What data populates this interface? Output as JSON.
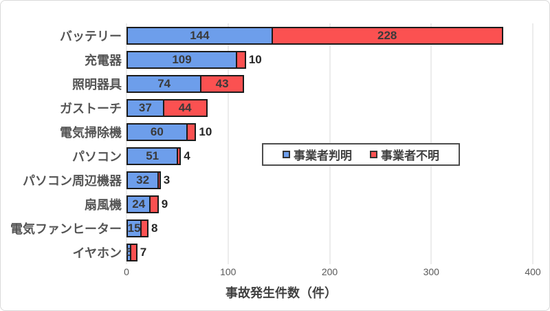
{
  "chart_data": {
    "type": "bar",
    "orientation": "horizontal",
    "stacked": true,
    "title": "",
    "xlabel": "事故発生件数（件）",
    "ylabel": "",
    "xlim": [
      0,
      400
    ],
    "x_ticks": [
      0,
      100,
      200,
      300,
      400
    ],
    "grid": true,
    "legend_position": "inside-middle-right",
    "categories": [
      "バッテリー",
      "充電器",
      "照明器具",
      "ガストーチ",
      "電気掃除機",
      "パソコン",
      "パソコン周辺機器",
      "扇風機",
      "電気ファンヒーター",
      "イヤホン"
    ],
    "series": [
      {
        "name": "事業者判明",
        "color": "#6d9eeb",
        "values": [
          144,
          109,
          74,
          37,
          60,
          51,
          32,
          24,
          15,
          5
        ]
      },
      {
        "name": "事業者不明",
        "color": "#fb5151",
        "values": [
          228,
          10,
          43,
          44,
          10,
          4,
          3,
          9,
          8,
          7
        ]
      }
    ]
  },
  "colors": {
    "bar_blue": "#6d9eeb",
    "bar_red": "#fb5151",
    "bar_border": "#1a1a1a",
    "gridline": "#d9d9d9",
    "chart_border": "#d9d9d9",
    "value_label_text": "#3a3a3a",
    "axis_text": "#595959",
    "legend_border": "#4d4d4d"
  },
  "legend": {
    "items": [
      {
        "label": "事業者判明",
        "color": "#6d9eeb"
      },
      {
        "label": "事業者不明",
        "color": "#fb5151"
      }
    ]
  }
}
